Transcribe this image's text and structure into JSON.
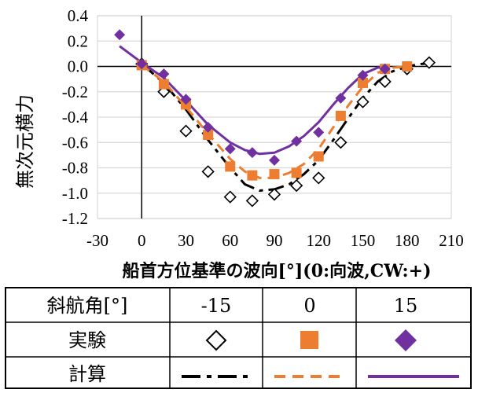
{
  "chart_data": {
    "type": "scatter",
    "title": "",
    "xlabel": "船首方位基準の波向[°](0:向波,CW:+)",
    "ylabel": "無次元横力",
    "xlim": [
      -30,
      210
    ],
    "ylim": [
      -1.2,
      0.4
    ],
    "x_ticks": [
      "-30",
      "0",
      "30",
      "60",
      "90",
      "120",
      "150",
      "180",
      "210"
    ],
    "y_ticks": [
      "0.4",
      "0.2",
      "0.0",
      "-0.2",
      "-0.4",
      "-0.6",
      "-0.8",
      "-1.0",
      "-1.2"
    ],
    "grid": "horizontal",
    "experiment": [
      {
        "name": "-15",
        "marker": "open-diamond",
        "color": "#000000",
        "x": [
          0,
          15,
          30,
          45,
          60,
          75,
          90,
          105,
          120,
          135,
          150,
          165,
          180,
          195
        ],
        "y": [
          0.02,
          -0.2,
          -0.51,
          -0.83,
          -1.03,
          -1.06,
          -1.01,
          -0.94,
          -0.88,
          -0.6,
          -0.28,
          -0.12,
          -0.02,
          0.03
        ]
      },
      {
        "name": "0",
        "marker": "filled-square",
        "color": "#ED7D31",
        "x": [
          0,
          15,
          30,
          45,
          60,
          75,
          90,
          105,
          120,
          135,
          150,
          165,
          180
        ],
        "y": [
          0.01,
          -0.14,
          -0.3,
          -0.54,
          -0.79,
          -0.86,
          -0.85,
          -0.84,
          -0.71,
          -0.39,
          -0.13,
          -0.02,
          0.0
        ]
      },
      {
        "name": "15",
        "marker": "filled-diamond",
        "color": "#7030A0",
        "x": [
          -15,
          0,
          15,
          30,
          45,
          60,
          75,
          90,
          105,
          120,
          135,
          150,
          165
        ],
        "y": [
          0.25,
          0.02,
          -0.06,
          -0.26,
          -0.48,
          -0.65,
          -0.68,
          -0.74,
          -0.59,
          -0.52,
          -0.25,
          -0.07,
          -0.02
        ]
      }
    ],
    "calculation": [
      {
        "name": "-15",
        "style": "dash-dot",
        "color": "#000000",
        "x": [
          0,
          15,
          30,
          45,
          60,
          70,
          80,
          90,
          100,
          110,
          120,
          130,
          140,
          150,
          160,
          170,
          180,
          190,
          195
        ],
        "y": [
          0.02,
          -0.13,
          -0.34,
          -0.58,
          -0.8,
          -0.93,
          -0.98,
          -0.97,
          -0.93,
          -0.85,
          -0.74,
          -0.58,
          -0.41,
          -0.25,
          -0.12,
          -0.04,
          0.0,
          0.02,
          0.02
        ]
      },
      {
        "name": "0",
        "style": "dashed",
        "color": "#ED7D31",
        "x": [
          0,
          15,
          30,
          45,
          60,
          70,
          80,
          90,
          100,
          110,
          120,
          130,
          140,
          150,
          160,
          170,
          180
        ],
        "y": [
          0.01,
          -0.12,
          -0.32,
          -0.53,
          -0.73,
          -0.83,
          -0.88,
          -0.88,
          -0.84,
          -0.77,
          -0.65,
          -0.48,
          -0.31,
          -0.16,
          -0.05,
          -0.01,
          0.0
        ]
      },
      {
        "name": "15",
        "style": "solid",
        "color": "#7030A0",
        "x": [
          -15,
          0,
          15,
          30,
          45,
          60,
          70,
          80,
          90,
          100,
          110,
          120,
          130,
          140,
          150,
          160,
          168
        ],
        "y": [
          0.16,
          0.03,
          -0.09,
          -0.27,
          -0.46,
          -0.6,
          -0.66,
          -0.69,
          -0.68,
          -0.63,
          -0.55,
          -0.44,
          -0.3,
          -0.17,
          -0.06,
          -0.01,
          0.0
        ]
      }
    ]
  },
  "legend_table": {
    "header_label": "斜航角[°]",
    "columns": [
      "-15",
      "0",
      "15"
    ],
    "row_experiment": "実験",
    "row_calculation": "計算"
  }
}
